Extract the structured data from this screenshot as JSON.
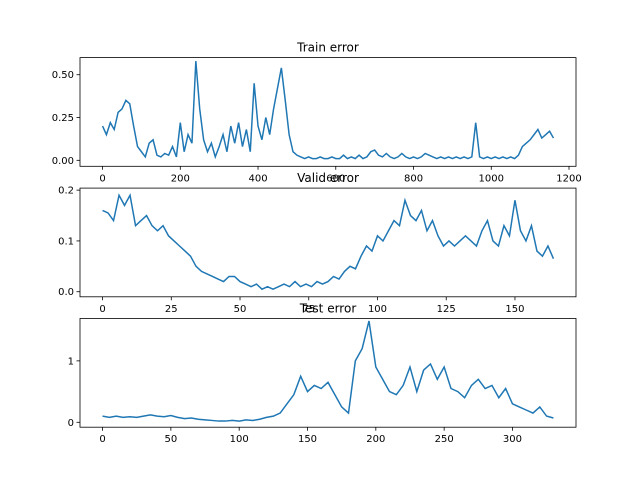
{
  "chart_data": [
    {
      "type": "line",
      "title": "Train error",
      "x": [
        0,
        10,
        20,
        30,
        40,
        50,
        60,
        70,
        80,
        90,
        100,
        110,
        120,
        130,
        140,
        150,
        160,
        170,
        180,
        190,
        200,
        210,
        220,
        230,
        240,
        250,
        260,
        270,
        280,
        290,
        300,
        310,
        320,
        330,
        340,
        350,
        360,
        370,
        380,
        390,
        400,
        410,
        420,
        430,
        440,
        450,
        460,
        470,
        480,
        490,
        500,
        510,
        520,
        530,
        540,
        550,
        560,
        570,
        580,
        590,
        600,
        610,
        620,
        630,
        640,
        650,
        660,
        670,
        680,
        690,
        700,
        710,
        720,
        730,
        740,
        750,
        760,
        770,
        780,
        790,
        800,
        810,
        820,
        830,
        840,
        850,
        860,
        870,
        880,
        890,
        900,
        910,
        920,
        930,
        940,
        950,
        960,
        970,
        980,
        990,
        1000,
        1010,
        1020,
        1030,
        1040,
        1050,
        1060,
        1070,
        1080,
        1090,
        1100,
        1110,
        1120,
        1130,
        1140,
        1150,
        1160
      ],
      "values": [
        0.2,
        0.15,
        0.22,
        0.18,
        0.28,
        0.3,
        0.35,
        0.33,
        0.2,
        0.08,
        0.05,
        0.02,
        0.1,
        0.12,
        0.03,
        0.02,
        0.04,
        0.03,
        0.08,
        0.02,
        0.22,
        0.05,
        0.15,
        0.1,
        0.58,
        0.3,
        0.12,
        0.05,
        0.1,
        0.02,
        0.08,
        0.15,
        0.05,
        0.2,
        0.1,
        0.22,
        0.08,
        0.18,
        0.05,
        0.45,
        0.2,
        0.12,
        0.25,
        0.15,
        0.3,
        0.42,
        0.54,
        0.35,
        0.15,
        0.05,
        0.03,
        0.02,
        0.01,
        0.02,
        0.01,
        0.01,
        0.02,
        0.01,
        0.01,
        0.02,
        0.01,
        0.01,
        0.03,
        0.01,
        0.02,
        0.01,
        0.03,
        0.01,
        0.02,
        0.05,
        0.06,
        0.03,
        0.02,
        0.04,
        0.02,
        0.01,
        0.02,
        0.04,
        0.02,
        0.01,
        0.02,
        0.01,
        0.02,
        0.04,
        0.03,
        0.02,
        0.01,
        0.02,
        0.01,
        0.02,
        0.01,
        0.02,
        0.01,
        0.02,
        0.01,
        0.02,
        0.22,
        0.02,
        0.01,
        0.02,
        0.01,
        0.02,
        0.01,
        0.02,
        0.01,
        0.02,
        0.01,
        0.03,
        0.08,
        0.1,
        0.12,
        0.15,
        0.18,
        0.13,
        0.15,
        0.17,
        0.13
      ],
      "color": "#1f77b4",
      "xlim": [
        -58,
        1218
      ],
      "xticks": [
        0,
        200,
        400,
        600,
        800,
        1000,
        1200
      ],
      "ylim": [
        -0.035,
        0.6
      ],
      "yticks": [
        {
          "value": 0,
          "label": "0.00"
        },
        0.25,
        {
          "value": 0.5,
          "label": "0.50"
        }
      ]
    },
    {
      "type": "line",
      "title": "Valid error",
      "x": [
        0,
        2,
        4,
        6,
        8,
        10,
        12,
        14,
        16,
        18,
        20,
        22,
        24,
        26,
        28,
        30,
        32,
        34,
        36,
        38,
        40,
        42,
        44,
        46,
        48,
        50,
        52,
        54,
        56,
        58,
        60,
        62,
        64,
        66,
        68,
        70,
        72,
        74,
        76,
        78,
        80,
        82,
        84,
        86,
        88,
        90,
        92,
        94,
        96,
        98,
        100,
        102,
        104,
        106,
        108,
        110,
        112,
        114,
        116,
        118,
        120,
        122,
        124,
        126,
        128,
        130,
        132,
        134,
        136,
        138,
        140,
        142,
        144,
        146,
        148,
        150,
        152,
        154,
        156,
        158,
        160,
        162,
        164
      ],
      "values": [
        0.16,
        0.155,
        0.14,
        0.19,
        0.17,
        0.19,
        0.13,
        0.14,
        0.15,
        0.13,
        0.12,
        0.13,
        0.11,
        0.1,
        0.09,
        0.08,
        0.07,
        0.05,
        0.04,
        0.035,
        0.03,
        0.025,
        0.02,
        0.03,
        0.03,
        0.02,
        0.015,
        0.01,
        0.015,
        0.005,
        0.01,
        0.005,
        0.01,
        0.015,
        0.01,
        0.02,
        0.01,
        0.015,
        0.01,
        0.02,
        0.015,
        0.02,
        0.03,
        0.025,
        0.04,
        0.05,
        0.045,
        0.07,
        0.09,
        0.08,
        0.11,
        0.1,
        0.12,
        0.14,
        0.13,
        0.18,
        0.15,
        0.14,
        0.16,
        0.12,
        0.14,
        0.11,
        0.09,
        0.1,
        0.09,
        0.1,
        0.11,
        0.1,
        0.09,
        0.12,
        0.14,
        0.1,
        0.09,
        0.13,
        0.11,
        0.18,
        0.12,
        0.1,
        0.13,
        0.08,
        0.07,
        0.09,
        0.065
      ],
      "color": "#1f77b4",
      "xlim": [
        -8.2,
        172.2
      ],
      "xticks": [
        0,
        25,
        50,
        75,
        100,
        125,
        150
      ],
      "ylim": [
        -0.01,
        0.204
      ],
      "yticks": [
        {
          "value": 0,
          "label": "0.0"
        },
        0.1,
        0.2
      ]
    },
    {
      "type": "line",
      "title": "Test error",
      "x": [
        0,
        5,
        10,
        15,
        20,
        25,
        30,
        35,
        40,
        45,
        50,
        55,
        60,
        65,
        70,
        75,
        80,
        85,
        90,
        95,
        100,
        105,
        110,
        115,
        120,
        125,
        130,
        135,
        140,
        145,
        150,
        155,
        160,
        165,
        170,
        175,
        180,
        185,
        190,
        195,
        200,
        205,
        210,
        215,
        220,
        225,
        230,
        235,
        240,
        245,
        250,
        255,
        260,
        265,
        270,
        275,
        280,
        285,
        290,
        295,
        300,
        305,
        310,
        315,
        320,
        325,
        330
      ],
      "values": [
        0.1,
        0.08,
        0.1,
        0.08,
        0.09,
        0.08,
        0.1,
        0.12,
        0.1,
        0.09,
        0.11,
        0.08,
        0.06,
        0.07,
        0.05,
        0.04,
        0.03,
        0.02,
        0.02,
        0.03,
        0.02,
        0.04,
        0.03,
        0.05,
        0.08,
        0.1,
        0.15,
        0.3,
        0.45,
        0.75,
        0.5,
        0.6,
        0.55,
        0.65,
        0.45,
        0.25,
        0.15,
        1.0,
        1.2,
        1.65,
        0.9,
        0.7,
        0.5,
        0.45,
        0.6,
        0.9,
        0.5,
        0.85,
        0.95,
        0.7,
        0.9,
        0.55,
        0.5,
        0.4,
        0.6,
        0.7,
        0.55,
        0.6,
        0.4,
        0.55,
        0.3,
        0.25,
        0.2,
        0.15,
        0.25,
        0.1,
        0.07
      ],
      "color": "#1f77b4",
      "xlim": [
        -16.5,
        346.5
      ],
      "xticks": [
        0,
        50,
        100,
        150,
        200,
        250,
        300
      ],
      "ylim": [
        -0.08,
        1.69
      ],
      "yticks": [
        0,
        1
      ]
    }
  ]
}
